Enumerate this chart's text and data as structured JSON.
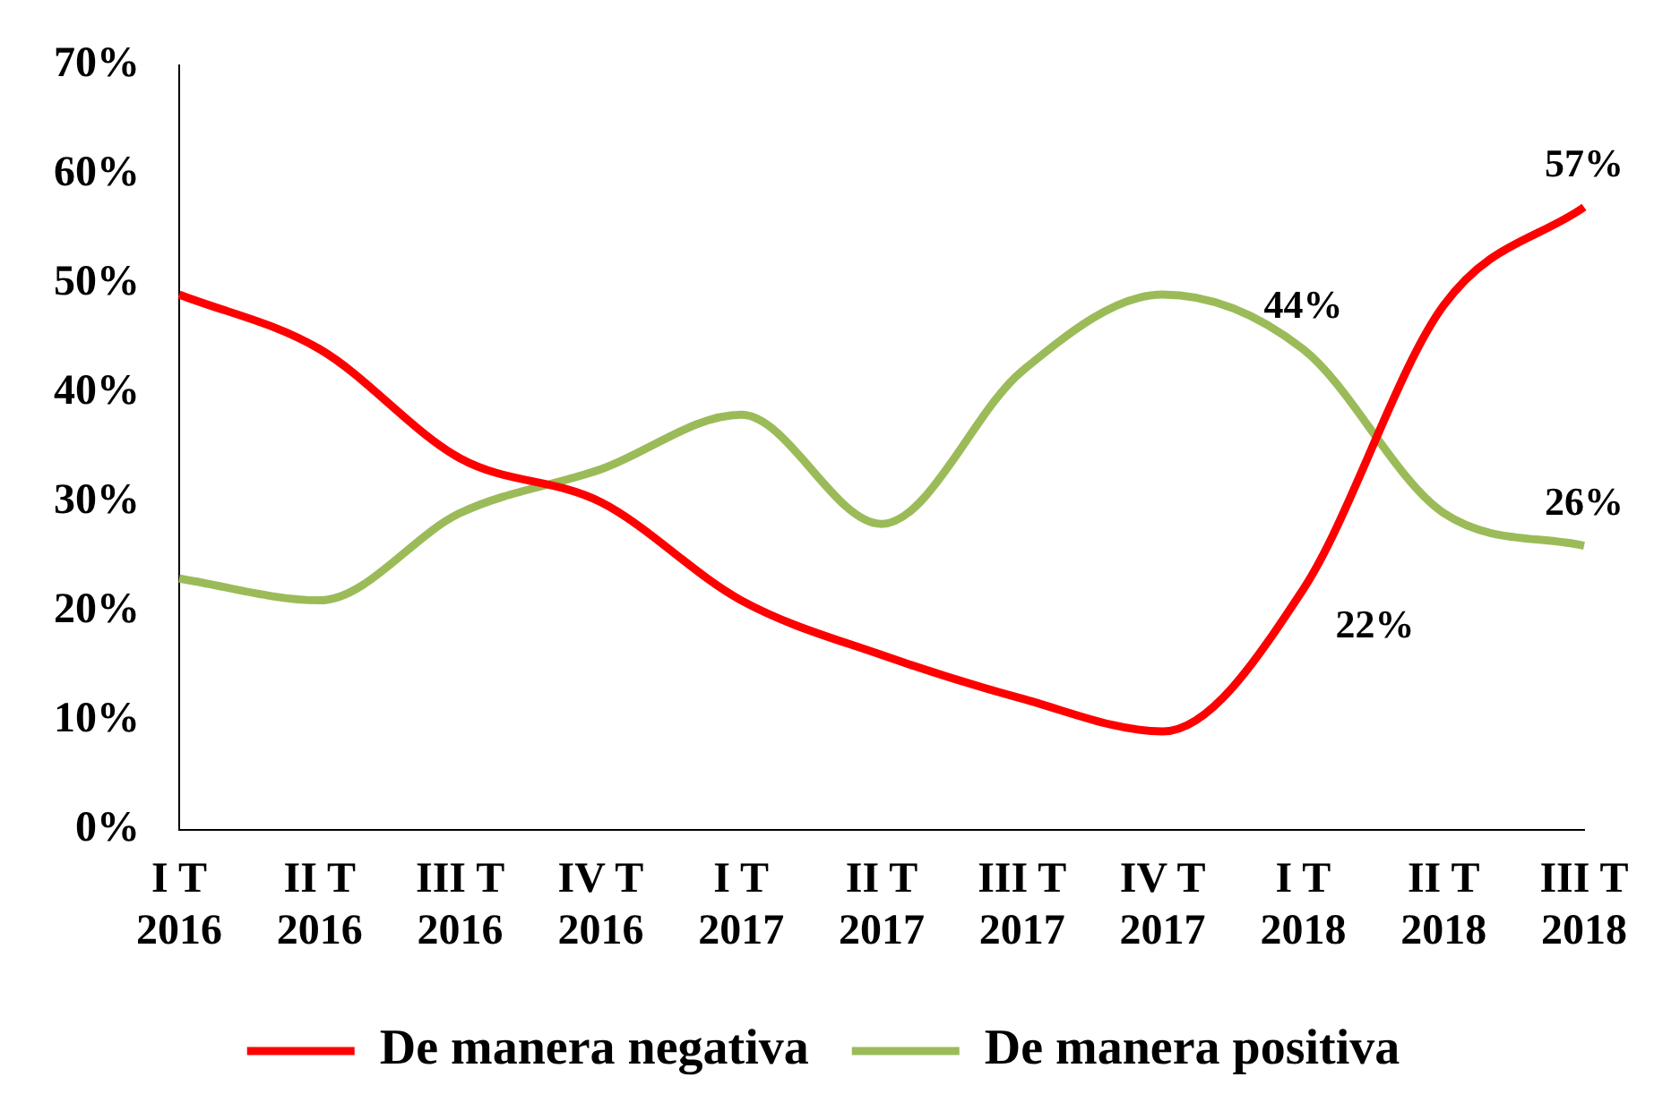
{
  "chart_data": {
    "type": "line",
    "categories": [
      "I T\n2016",
      "II T\n2016",
      "III T\n2016",
      "IV T\n2016",
      "I T\n2017",
      "II T\n2017",
      "III T\n2017",
      "IV T\n2017",
      "I T\n2018",
      "II T\n2018",
      "III T\n2018"
    ],
    "series": [
      {
        "name": "De manera negativa",
        "color": "#ff0000",
        "values": [
          49,
          44,
          34,
          30,
          21,
          16,
          12,
          9,
          22,
          48,
          57
        ],
        "value_labels": [
          null,
          null,
          null,
          null,
          null,
          null,
          null,
          null,
          "22%",
          null,
          "57%"
        ]
      },
      {
        "name": "De manera positiva",
        "color": "#9bbb59",
        "values": [
          23,
          21,
          29,
          33,
          38,
          28,
          42,
          49,
          44,
          29,
          26
        ],
        "value_labels": [
          null,
          null,
          null,
          null,
          null,
          null,
          null,
          null,
          "44%",
          null,
          "26%"
        ]
      }
    ],
    "ylim": [
      0,
      70
    ],
    "yticks": [
      {
        "value": 0,
        "label": "0%"
      },
      {
        "value": 10,
        "label": "10%"
      },
      {
        "value": 20,
        "label": "20%"
      },
      {
        "value": 30,
        "label": "30%"
      },
      {
        "value": 40,
        "label": "40%"
      },
      {
        "value": 50,
        "label": "50%"
      },
      {
        "value": 60,
        "label": "60%"
      },
      {
        "value": 70,
        "label": "70%"
      }
    ],
    "grid": false,
    "legend": "bottom",
    "marker": "none",
    "line_style": "solid"
  }
}
